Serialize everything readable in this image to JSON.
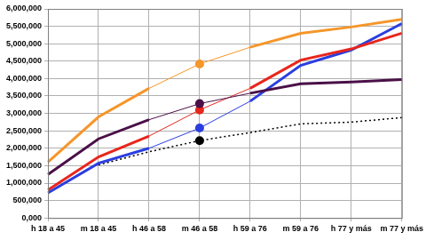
{
  "chart_data": {
    "type": "line",
    "categories": [
      "h 18 a 45",
      "m 18 a 45",
      "h 46 a 58",
      "m 46 a 58",
      "h 59 a 76",
      "m 59 a 76",
      "h 77 y más",
      "m 77 y más"
    ],
    "series": [
      {
        "color": "#f5962a",
        "values": [
          1600000,
          2900000,
          3720000,
          4420000,
          4900000,
          5300000,
          5480000,
          5700000
        ]
      },
      {
        "color": "#4a1048",
        "values": [
          1250000,
          2270000,
          2820000,
          3280000,
          3580000,
          3850000,
          3900000,
          3970000
        ]
      },
      {
        "color": "#e8261c",
        "values": [
          800000,
          1750000,
          2350000,
          3100000,
          3720000,
          4530000,
          4850000,
          5300000
        ]
      },
      {
        "color": "#2a3ee0",
        "values": [
          720000,
          1570000,
          2000000,
          2580000,
          3350000,
          4380000,
          4820000,
          5580000
        ]
      },
      {
        "color": "#000000",
        "line_style": "dotted",
        "values": [
          null,
          1520000,
          1900000,
          2220000,
          2450000,
          2700000,
          2750000,
          2880000
        ]
      }
    ],
    "ylim": [
      0,
      6000000
    ],
    "yticks": [
      {
        "value": 0,
        "label": "0,000"
      },
      {
        "value": 500000,
        "label": "500,000"
      },
      {
        "value": 1000000,
        "label": "1,000,000"
      },
      {
        "value": 1500000,
        "label": "1,500,000"
      },
      {
        "value": 2000000,
        "label": "2,000,000"
      },
      {
        "value": 2500000,
        "label": "2,500,000"
      },
      {
        "value": 3000000,
        "label": "3,000,000"
      },
      {
        "value": 3500000,
        "label": "3,500,000"
      },
      {
        "value": 4000000,
        "label": "4,000,000"
      },
      {
        "value": 4500000,
        "label": "4,500,000"
      },
      {
        "value": 5000000,
        "label": "5,000,000"
      },
      {
        "value": 5500000,
        "label": "5,500,000"
      },
      {
        "value": 6000000,
        "label": "6,000,000"
      }
    ],
    "grid": true
  }
}
